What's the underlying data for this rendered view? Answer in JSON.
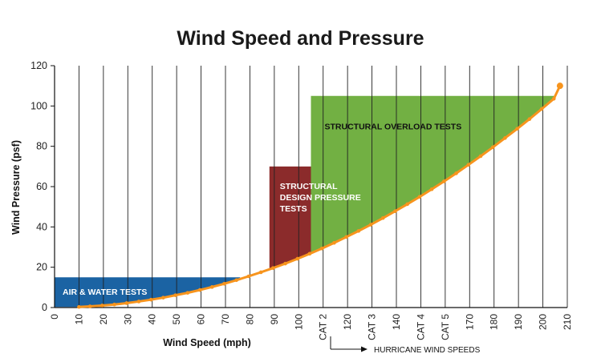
{
  "chart_data": {
    "type": "line",
    "title": "Wind Speed and Pressure",
    "xlabel": "Wind Speed (mph)",
    "ylabel": "Wind Pressure (psf)",
    "xlim": [
      0,
      210
    ],
    "ylim": [
      0,
      120
    ],
    "grid": "vertical",
    "x_ticks": [
      "0",
      "10",
      "20",
      "30",
      "40",
      "50",
      "60",
      "70",
      "80",
      "90",
      "100",
      "CAT 2",
      "120",
      "CAT 3",
      "140",
      "CAT 4",
      "CAT 5",
      "170",
      "180",
      "190",
      "200",
      "210"
    ],
    "x_tick_values": [
      0,
      10,
      20,
      30,
      40,
      50,
      60,
      70,
      80,
      90,
      100,
      110,
      120,
      130,
      140,
      150,
      160,
      170,
      180,
      190,
      200,
      210
    ],
    "y_ticks": [
      "0",
      "20",
      "40",
      "60",
      "80",
      "100",
      "120"
    ],
    "y_tick_values": [
      0,
      20,
      40,
      60,
      80,
      100,
      120
    ],
    "series": [
      {
        "color": "#f7941d",
        "x": [
          10,
          14.5,
          19.5,
          24.5,
          29.5,
          34.5,
          39.5,
          44.5,
          49.5,
          54.5,
          59.5,
          64.5,
          69.5,
          74.5,
          79.5,
          84.5,
          89.5,
          94.5,
          99.5,
          104.5,
          109.5,
          114.5,
          119.5,
          124.5,
          129.5,
          134.5,
          139.5,
          144.5,
          149.5,
          154.5,
          159.5,
          164.5,
          169.5,
          174.5,
          179.5,
          184.5,
          189.5,
          194.5,
          199.5,
          204.5,
          207
        ],
        "y": [
          0.3,
          0.6,
          1.0,
          1.5,
          2.2,
          3.0,
          3.9,
          4.9,
          6.1,
          7.3,
          8.7,
          10.2,
          11.8,
          13.6,
          15.5,
          17.5,
          19.6,
          21.8,
          24.2,
          26.7,
          29.3,
          32.1,
          35.0,
          38.0,
          41.1,
          44.4,
          47.8,
          51.3,
          54.9,
          58.7,
          62.6,
          66.6,
          70.8,
          75.1,
          79.5,
          84.1,
          88.7,
          93.5,
          98.5,
          103.6,
          110
        ]
      }
    ],
    "regions": [
      {
        "label": "AIR & WATER TESTS",
        "color": "#1b63a3",
        "x_range": [
          0,
          76
        ],
        "y_top": 15
      },
      {
        "label_lines": [
          "STRUCTURAL",
          "DESIGN PRESSURE",
          "TESTS"
        ],
        "color": "#8b2b2b",
        "x_range": [
          88,
          166
        ],
        "y_top": 70
      },
      {
        "label": "STRUCTURAL OVERLOAD TESTS",
        "color": "#72b043",
        "x_range": [
          105,
          207
        ],
        "y_top": 105
      }
    ],
    "annotation": "HURRICANE WIND SPEEDS"
  }
}
